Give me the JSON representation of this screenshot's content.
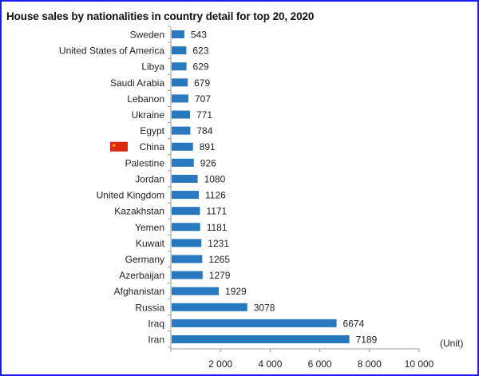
{
  "chart_data": {
    "type": "bar",
    "orientation": "horizontal",
    "title": "House sales by nationalities in country detail for top 20, 2020",
    "unit_label": "(Unit)",
    "categories": [
      "Sweden",
      "United States of America",
      "Libya",
      "Saudi Arabia",
      "Lebanon",
      "Ukraine",
      "Egypt",
      "China",
      "Palestine",
      "Jordan",
      "United Kingdom",
      "Kazakhstan",
      "Yemen",
      "Kuwait",
      "Germany",
      "Azerbaijan",
      "Afghanistan",
      "Russia",
      "Iraq",
      "Iran"
    ],
    "values": [
      543,
      623,
      629,
      679,
      707,
      771,
      784,
      891,
      926,
      1080,
      1126,
      1171,
      1181,
      1231,
      1265,
      1279,
      1929,
      3078,
      6674,
      7189
    ],
    "xlim": [
      0,
      10000
    ],
    "ticks": [
      2000,
      4000,
      6000,
      8000,
      10000
    ],
    "tick_labels": [
      "2 000",
      "4 000",
      "6 000",
      "8 000",
      "10 000"
    ],
    "grid": false,
    "bar_color": "#2878c0",
    "highlight": {
      "category": "China",
      "icon": "china-flag-icon",
      "flag_color": "#de2910",
      "star_color": "#ffde00"
    }
  }
}
